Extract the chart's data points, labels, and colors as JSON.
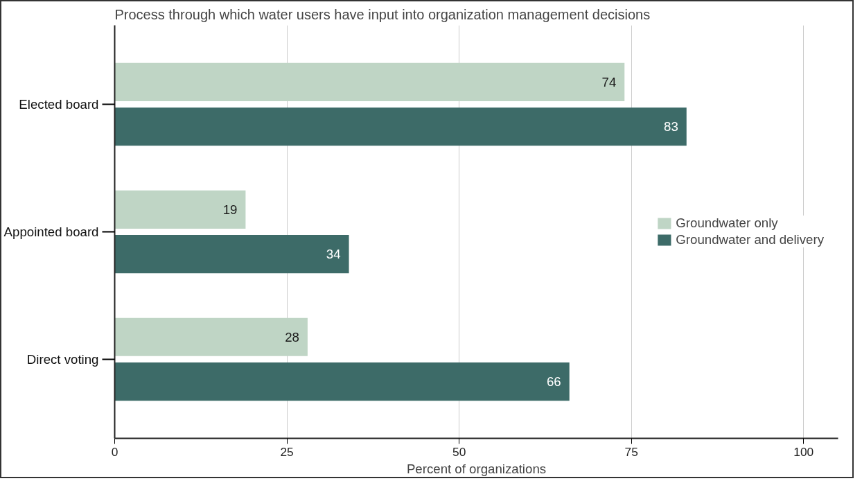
{
  "chart_data": {
    "type": "bar",
    "orientation": "horizontal",
    "title": "Process through which water users have input into organization management decisions",
    "xlabel": "Percent of organizations",
    "categories": [
      "Elected board",
      "Appointed board",
      "Direct voting"
    ],
    "series": [
      {
        "name": "Groundwater only",
        "color": "#bfd5c5",
        "values": [
          74,
          19,
          28
        ]
      },
      {
        "name": "Groundwater and delivery",
        "color": "#3d6b68",
        "values": [
          83,
          34,
          66
        ]
      }
    ],
    "xlim": [
      0,
      105
    ],
    "xticks": [
      0,
      25,
      50,
      75,
      100
    ],
    "grid": "x",
    "legend": "right",
    "data_labels": true
  }
}
